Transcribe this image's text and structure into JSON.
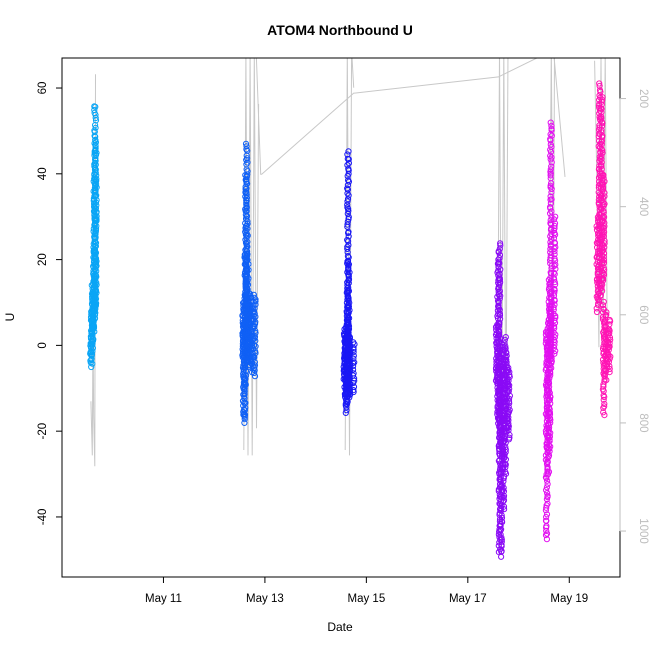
{
  "chart_data": {
    "type": "scatter",
    "title": "ATOM4 Northbound U",
    "xlabel": "Date",
    "ylabel": "U",
    "x_ticks": [
      {
        "date": "2015-05-11",
        "label": "May 11"
      },
      {
        "date": "2015-05-13",
        "label": "May 13"
      },
      {
        "date": "2015-05-15",
        "label": "May 15"
      },
      {
        "date": "2015-05-17",
        "label": "May 17"
      },
      {
        "date": "2015-05-19",
        "label": "May 19"
      }
    ],
    "xlim": [
      "2015-05-09T00:00",
      "2015-05-20T00:00"
    ],
    "ylim": [
      -54,
      67
    ],
    "y_ticks": [
      -40,
      -20,
      0,
      20,
      40,
      60
    ],
    "y2_axis": {
      "ticks": [
        200,
        400,
        600,
        800,
        1000
      ],
      "range_top_to_bottom": [
        125,
        1085
      ],
      "color": "#bdbdbd",
      "line_color": "#c8c8c8"
    },
    "grid": false,
    "marker": "open-circle",
    "series": [
      {
        "color": "#0aa5f5",
        "clusters": [
          {
            "start": "2015-05-09T13:40",
            "end": "2015-05-09T16:00",
            "columns": [
              [
                -5,
                2
              ],
              [
                -4,
                8
              ],
              [
                -2,
                14
              ],
              [
                1,
                12
              ],
              [
                3,
                22
              ],
              [
                4,
                40
              ],
              [
                8,
                56
              ],
              [
                9,
                48
              ]
            ]
          }
        ],
        "line": {
          "times": [
            "2015-05-09T13:40",
            "2015-05-09T14:20",
            "2015-05-09T14:40",
            "2015-05-09T15:00",
            "2015-05-09T15:30",
            "2015-05-09T15:50"
          ],
          "values": [
            760,
            860,
            620,
            790,
            880,
            155
          ]
        }
      },
      {
        "color": "#1060f5",
        "clusters": [
          {
            "start": "2015-05-12T13:40",
            "end": "2015-05-12T16:10",
            "columns": [
              [
                -3,
                10
              ],
              [
                -18,
                5
              ],
              [
                -17,
                12
              ],
              [
                -10,
                22
              ],
              [
                0,
                40
              ],
              [
                -2,
                47
              ],
              [
                -4,
                20
              ],
              [
                -5,
                12
              ]
            ]
          },
          {
            "start": "2015-05-12T16:30",
            "end": "2015-05-12T19:10",
            "columns": [
              [
                -4,
                8
              ],
              [
                -5,
                12
              ],
              [
                -6,
                10
              ],
              [
                -7,
                12
              ]
            ]
          }
        ],
        "line": {
          "times": [
            "2015-05-12T14:00",
            "2015-05-12T15:00",
            "2015-05-12T16:00",
            "2015-05-12T17:00",
            "2015-05-12T18:00",
            "2015-05-12T19:00",
            "2015-05-12T20:00",
            "2015-05-12T21:00"
          ],
          "values": [
            850,
            120,
            860,
            120,
            860,
            120,
            810,
            210
          ]
        }
      },
      {
        "color": "#1a18f5",
        "clusters": [
          {
            "start": "2015-05-14T13:40",
            "end": "2015-05-14T16:00",
            "columns": [
              [
                -8,
                3
              ],
              [
                -12,
                4
              ],
              [
                -16,
                2
              ],
              [
                -14,
                6
              ],
              [
                -10,
                12
              ],
              [
                -13,
                45
              ],
              [
                -11,
                20
              ],
              [
                -9,
                2
              ]
            ]
          },
          {
            "start": "2015-05-14T16:00",
            "end": "2015-05-14T18:00",
            "columns": [
              [
                -12,
                2
              ],
              [
                -11,
                1
              ]
            ]
          }
        ],
        "line": {
          "times": [
            "2015-05-14T14:00",
            "2015-05-14T15:00",
            "2015-05-14T16:00",
            "2015-05-14T17:00",
            "2015-05-14T18:00"
          ],
          "values": [
            850,
            110,
            860,
            110,
            180
          ]
        }
      },
      {
        "color": "#8a0af5",
        "clusters": [
          {
            "start": "2015-05-17T13:40",
            "end": "2015-05-17T15:00",
            "columns": [
              [
                -9,
                5
              ],
              [
                -18,
                20
              ],
              [
                -25,
                24
              ]
            ]
          },
          {
            "start": "2015-05-17T15:00",
            "end": "2015-05-17T19:30",
            "columns": [
              [
                -48,
                -5
              ],
              [
                -49,
                -2
              ],
              [
                -38,
                0
              ],
              [
                -30,
                2
              ],
              [
                -20,
                -2
              ],
              [
                -22,
                -5
              ]
            ]
          }
        ],
        "line": {
          "times": [
            "2015-05-17T14:00",
            "2015-05-17T15:00",
            "2015-05-17T16:00",
            "2015-05-17T17:00",
            "2015-05-17T18:00",
            "2015-05-17T19:00"
          ],
          "values": [
            820,
            110,
            870,
            110,
            820,
            110
          ]
        }
      },
      {
        "color": "#e210f0",
        "clusters": [
          {
            "start": "2015-05-18T13:20",
            "end": "2015-05-18T15:20",
            "columns": [
              [
                -45,
                3
              ],
              [
                -30,
                6
              ],
              [
                -25,
                15
              ],
              [
                -5,
                10
              ]
            ]
          },
          {
            "start": "2015-05-18T15:20",
            "end": "2015-05-18T17:00",
            "columns": [
              [
                -3,
                52
              ],
              [
                -2,
                30
              ]
            ]
          }
        ],
        "line": {
          "times": [
            "2015-05-18T14:00",
            "2015-05-18T15:30",
            "2015-05-18T16:30",
            "2015-05-18T17:00"
          ],
          "values": [
            860,
            110,
            640,
            110
          ]
        }
      },
      {
        "color": "#ff14b4",
        "clusters": [
          {
            "start": "2015-05-19T13:20",
            "end": "2015-05-19T16:20",
            "columns": [
              [
                8,
                30
              ],
              [
                10,
                61
              ],
              [
                12,
                58
              ],
              [
                15,
                40
              ]
            ]
          },
          {
            "start": "2015-05-19T16:20",
            "end": "2015-05-19T19:00",
            "columns": [
              [
                -16,
                10
              ],
              [
                -8,
                8
              ],
              [
                -5,
                4
              ],
              [
                -6,
                6
              ]
            ]
          }
        ],
        "line": {
          "times": [
            "2015-05-19T12:00",
            "2015-05-19T13:00",
            "2015-05-19T14:00",
            "2015-05-19T15:00",
            "2015-05-19T16:00",
            "2015-05-19T17:00",
            "2015-05-19T18:00"
          ],
          "values": [
            130,
            345,
            660,
            120,
            660,
            120,
            660
          ]
        }
      }
    ],
    "connector_line": {
      "times": [
        "2015-05-09T15:50",
        "2015-05-12T19:50",
        "2015-05-12T22:00",
        "2015-05-12T22:30",
        "2015-05-14T18:00",
        "2015-05-14T18:30",
        "2015-05-17T14:30",
        "2015-05-18T16:30",
        "2015-05-18T22:00"
      ],
      "values": [
        110,
        110,
        340,
        340,
        190,
        190,
        160,
        110,
        345
      ]
    }
  }
}
